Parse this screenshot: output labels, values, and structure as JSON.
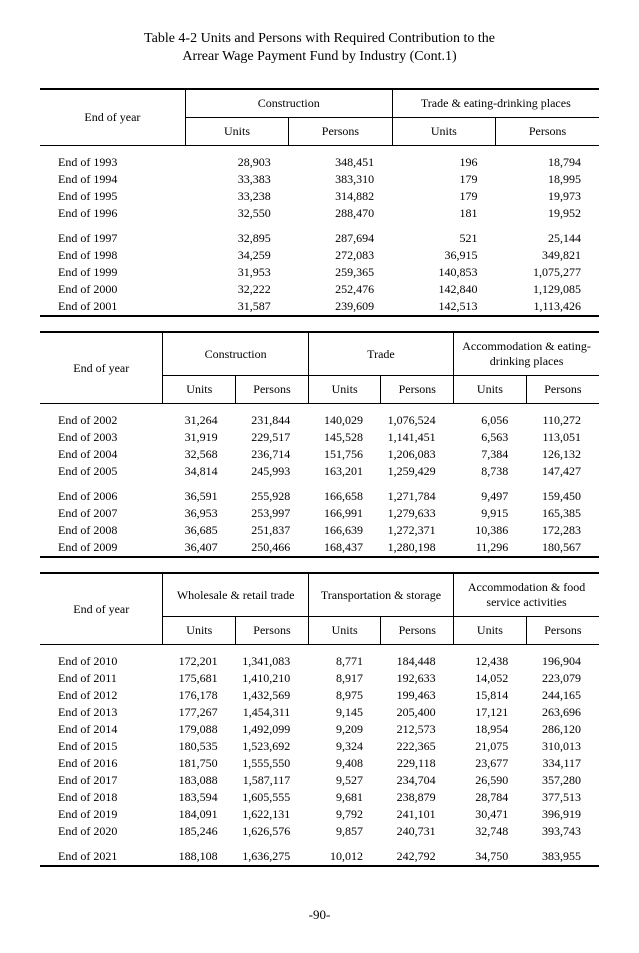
{
  "title_line1": "Table 4-2 Units and Persons with Required Contribution to the",
  "title_line2": "Arrear Wage Payment Fund by Industry (Cont.1)",
  "footer": "-90-",
  "tableA": {
    "corner": "End of year",
    "groups": [
      "Construction",
      "Trade & eating-drinking places"
    ],
    "sub": [
      "Units",
      "Persons",
      "Units",
      "Persons"
    ],
    "block1": [
      {
        "label": "End of 1993",
        "v": [
          "28,903",
          "348,451",
          "196",
          "18,794"
        ]
      },
      {
        "label": "End of 1994",
        "v": [
          "33,383",
          "383,310",
          "179",
          "18,995"
        ]
      },
      {
        "label": "End of 1995",
        "v": [
          "33,238",
          "314,882",
          "179",
          "19,973"
        ]
      },
      {
        "label": "End of 1996",
        "v": [
          "32,550",
          "288,470",
          "181",
          "19,952"
        ]
      }
    ],
    "block2": [
      {
        "label": "End of 1997",
        "v": [
          "32,895",
          "287,694",
          "521",
          "25,144"
        ]
      },
      {
        "label": "End of 1998",
        "v": [
          "34,259",
          "272,083",
          "36,915",
          "349,821"
        ]
      },
      {
        "label": "End of 1999",
        "v": [
          "31,953",
          "259,365",
          "140,853",
          "1,075,277"
        ]
      },
      {
        "label": "End of 2000",
        "v": [
          "32,222",
          "252,476",
          "142,840",
          "1,129,085"
        ]
      },
      {
        "label": "End of 2001",
        "v": [
          "31,587",
          "239,609",
          "142,513",
          "1,113,426"
        ]
      }
    ]
  },
  "tableB": {
    "corner": "End of year",
    "groups": [
      "Construction",
      "Trade",
      "Accommodation & eating-drinking places"
    ],
    "sub": [
      "Units",
      "Persons",
      "Units",
      "Persons",
      "Units",
      "Persons"
    ],
    "block1": [
      {
        "label": "End of 2002",
        "v": [
          "31,264",
          "231,844",
          "140,029",
          "1,076,524",
          "6,056",
          "110,272"
        ]
      },
      {
        "label": "End of 2003",
        "v": [
          "31,919",
          "229,517",
          "145,528",
          "1,141,451",
          "6,563",
          "113,051"
        ]
      },
      {
        "label": "End of 2004",
        "v": [
          "32,568",
          "236,714",
          "151,756",
          "1,206,083",
          "7,384",
          "126,132"
        ]
      },
      {
        "label": "End of 2005",
        "v": [
          "34,814",
          "245,993",
          "163,201",
          "1,259,429",
          "8,738",
          "147,427"
        ]
      }
    ],
    "block2": [
      {
        "label": "End of 2006",
        "v": [
          "36,591",
          "255,928",
          "166,658",
          "1,271,784",
          "9,497",
          "159,450"
        ]
      },
      {
        "label": "End of 2007",
        "v": [
          "36,953",
          "253,997",
          "166,991",
          "1,279,633",
          "9,915",
          "165,385"
        ]
      },
      {
        "label": "End of 2008",
        "v": [
          "36,685",
          "251,837",
          "166,639",
          "1,272,371",
          "10,386",
          "172,283"
        ]
      },
      {
        "label": "End of 2009",
        "v": [
          "36,407",
          "250,466",
          "168,437",
          "1,280,198",
          "11,296",
          "180,567"
        ]
      }
    ]
  },
  "tableC": {
    "corner": "End of year",
    "groups": [
      "Wholesale & retail trade",
      "Transportation & storage",
      "Accommodation & food service activities"
    ],
    "sub": [
      "Units",
      "Persons",
      "Units",
      "Persons",
      "Units",
      "Persons"
    ],
    "block1": [
      {
        "label": "End of 2010",
        "v": [
          "172,201",
          "1,341,083",
          "8,771",
          "184,448",
          "12,438",
          "196,904"
        ]
      },
      {
        "label": "End of 2011",
        "v": [
          "175,681",
          "1,410,210",
          "8,917",
          "192,633",
          "14,052",
          "223,079"
        ]
      },
      {
        "label": "End of 2012",
        "v": [
          "176,178",
          "1,432,569",
          "8,975",
          "199,463",
          "15,814",
          "244,165"
        ]
      },
      {
        "label": "End of 2013",
        "v": [
          "177,267",
          "1,454,311",
          "9,145",
          "205,400",
          "17,121",
          "263,696"
        ]
      },
      {
        "label": "End of 2014",
        "v": [
          "179,088",
          "1,492,099",
          "9,209",
          "212,573",
          "18,954",
          "286,120"
        ]
      },
      {
        "label": "End of 2015",
        "v": [
          "180,535",
          "1,523,692",
          "9,324",
          "222,365",
          "21,075",
          "310,013"
        ]
      },
      {
        "label": "End of 2016",
        "v": [
          "181,750",
          "1,555,550",
          "9,408",
          "229,118",
          "23,677",
          "334,117"
        ]
      },
      {
        "label": "End of 2017",
        "v": [
          "183,088",
          "1,587,117",
          "9,527",
          "234,704",
          "26,590",
          "357,280"
        ]
      },
      {
        "label": "End of 2018",
        "v": [
          "183,594",
          "1,605,555",
          "9,681",
          "238,879",
          "28,784",
          "377,513"
        ]
      },
      {
        "label": "End of 2019",
        "v": [
          "184,091",
          "1,622,131",
          "9,792",
          "241,101",
          "30,471",
          "396,919"
        ]
      },
      {
        "label": "End of 2020",
        "v": [
          "185,246",
          "1,626,576",
          "9,857",
          "240,731",
          "32,748",
          "393,743"
        ]
      }
    ],
    "block2": [
      {
        "label": "End of 2021",
        "v": [
          "188,108",
          "1,636,275",
          "10,012",
          "242,792",
          "34,750",
          "383,955"
        ]
      }
    ]
  }
}
